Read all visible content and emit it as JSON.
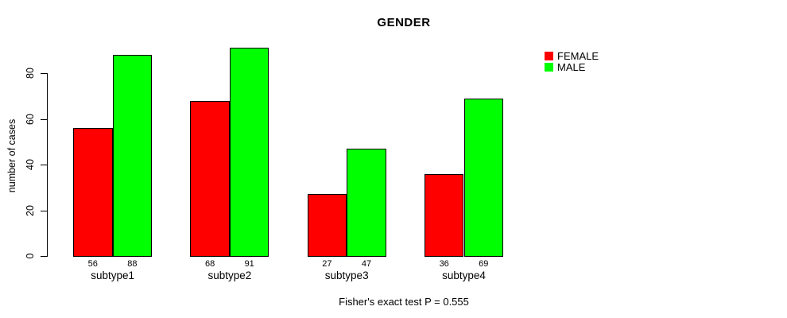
{
  "chart_data": {
    "type": "bar",
    "title": "GENDER",
    "ylabel": "number of cases",
    "xlabel": "",
    "categories": [
      "subtype1",
      "subtype2",
      "subtype3",
      "subtype4"
    ],
    "series": [
      {
        "name": "FEMALE",
        "color": "#ff0000",
        "values": [
          56,
          68,
          27,
          36
        ]
      },
      {
        "name": "MALE",
        "color": "#00ff00",
        "values": [
          88,
          91,
          47,
          69
        ]
      }
    ],
    "yticks": [
      0,
      20,
      40,
      60,
      80
    ],
    "bar_border_color": "#000000",
    "value_labels_shown": true,
    "grid": false,
    "legend_position": "top-right",
    "footnote": "Fisher's exact test P = 0.555"
  }
}
